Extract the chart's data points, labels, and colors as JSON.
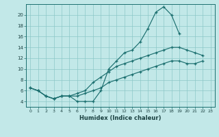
{
  "title": "",
  "xlabel": "Humidex (Indice chaleur)",
  "bg_color": "#c2e8e8",
  "grid_color": "#8cc8c8",
  "line_color": "#1a6e6e",
  "xlim": [
    -0.5,
    23.5
  ],
  "ylim": [
    3,
    22
  ],
  "xticks": [
    0,
    1,
    2,
    3,
    4,
    5,
    6,
    7,
    8,
    9,
    10,
    11,
    12,
    13,
    14,
    15,
    16,
    17,
    18,
    19,
    20,
    21,
    22,
    23
  ],
  "yticks": [
    4,
    6,
    8,
    10,
    12,
    14,
    16,
    18,
    20
  ],
  "line1_x": [
    0,
    1,
    2,
    3,
    4,
    5,
    6,
    7,
    8,
    9,
    10,
    11,
    12,
    13,
    14,
    15,
    16,
    17,
    18,
    19
  ],
  "line1_y": [
    6.5,
    6.0,
    5.0,
    4.5,
    5.0,
    5.0,
    4.0,
    4.0,
    4.0,
    6.0,
    10.0,
    11.5,
    13.0,
    13.5,
    15.0,
    17.5,
    20.5,
    21.5,
    20.0,
    16.5
  ],
  "line2_x": [
    0,
    1,
    2,
    3,
    4,
    5,
    6,
    7,
    8,
    9,
    10,
    11,
    12,
    13,
    14,
    15,
    16,
    17,
    18,
    19,
    20,
    21,
    22
  ],
  "line2_y": [
    6.5,
    6.0,
    5.0,
    4.5,
    5.0,
    5.0,
    5.5,
    6.0,
    7.5,
    8.5,
    9.5,
    10.5,
    11.0,
    11.5,
    12.0,
    12.5,
    13.0,
    13.5,
    14.0,
    14.0,
    13.5,
    13.0,
    12.5
  ],
  "line3_x": [
    0,
    1,
    2,
    3,
    4,
    5,
    6,
    7,
    8,
    9,
    10,
    11,
    12,
    13,
    14,
    15,
    16,
    17,
    18,
    19,
    20,
    21,
    22
  ],
  "line3_y": [
    6.5,
    6.0,
    5.0,
    4.5,
    5.0,
    5.0,
    5.0,
    5.5,
    6.0,
    6.5,
    7.5,
    8.0,
    8.5,
    9.0,
    9.5,
    10.0,
    10.5,
    11.0,
    11.5,
    11.5,
    11.0,
    11.0,
    11.5
  ]
}
